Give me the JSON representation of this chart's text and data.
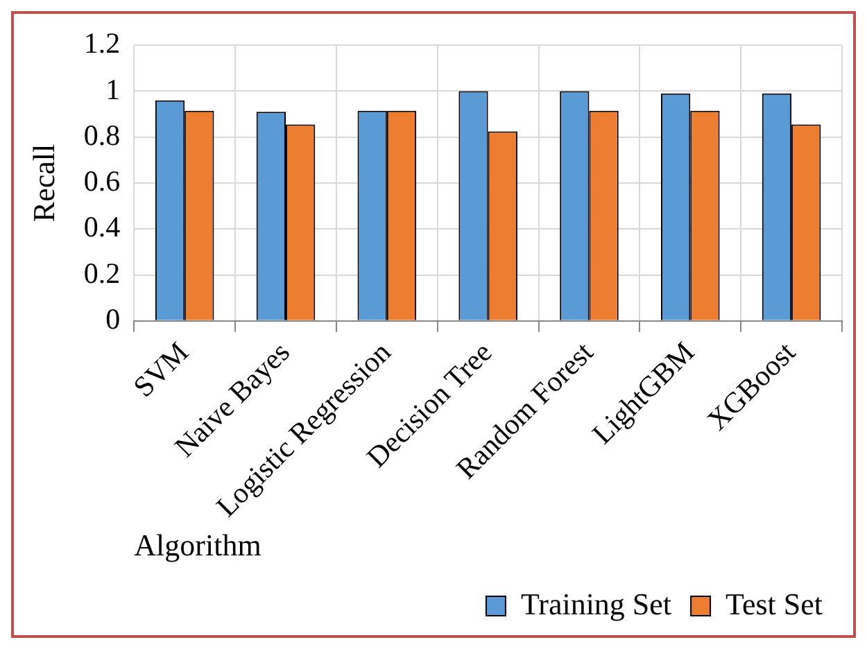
{
  "chart_data": {
    "type": "bar",
    "xlabel": "Algorithm",
    "ylabel": "Recall",
    "categories": [
      "SVM",
      "Naive Bayes",
      "Logistic Regression",
      "Decision Tree",
      "Random Forest",
      "LightGBM",
      "XGBoost"
    ],
    "series": [
      {
        "name": "Training Set",
        "color": "#5b9bd5",
        "values": [
          0.96,
          0.91,
          0.915,
          1.0,
          1.0,
          0.99,
          0.99
        ]
      },
      {
        "name": "Test Set",
        "color": "#ed7d31",
        "values": [
          0.915,
          0.855,
          0.915,
          0.825,
          0.915,
          0.915,
          0.855
        ]
      }
    ],
    "ylim": [
      0,
      1.2
    ],
    "yticks": [
      0,
      0.2,
      0.4,
      0.6,
      0.8,
      1,
      1.2
    ],
    "grid": true,
    "legend": "bottom right"
  }
}
